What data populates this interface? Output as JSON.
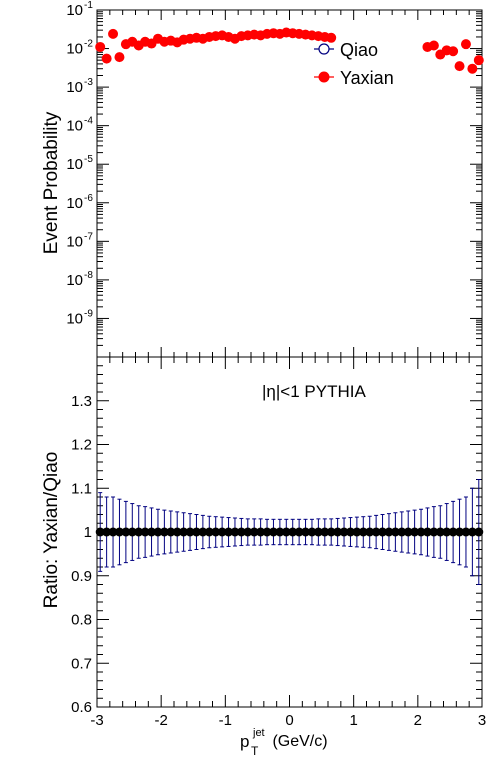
{
  "chart_data": [
    {
      "type": "scatter",
      "ylabel": "Event Probability",
      "ylog": true,
      "xlim": [
        -3,
        3
      ],
      "ylim_log10": [
        -10,
        -1
      ],
      "ytick_exponents": [
        "-9",
        "-8",
        "-7",
        "-6",
        "-5",
        "-4",
        "-3",
        "-2",
        "-1"
      ],
      "ytick_base": "10",
      "legend_position": "top-right",
      "legend": [
        {
          "label": "Qiao",
          "marker": "open-circle",
          "color": "#000080"
        },
        {
          "label": "Yaxian",
          "marker": "filled-circle",
          "color": "#ff0000"
        }
      ],
      "series": [
        {
          "name": "Yaxian",
          "color": "#ff0000",
          "x": [
            -2.95,
            -2.85,
            -2.75,
            -2.65,
            -2.55,
            -2.45,
            -2.35,
            -2.25,
            -2.15,
            -2.05,
            -1.95,
            -1.85,
            -1.75,
            -1.65,
            -1.55,
            -1.45,
            -1.35,
            -1.25,
            -1.15,
            -1.05,
            -0.95,
            -0.85,
            -0.75,
            -0.65,
            -0.55,
            -0.45,
            -0.35,
            -0.25,
            -0.15,
            -0.05,
            0.05,
            0.15,
            0.25,
            0.35,
            0.45,
            0.55,
            0.65,
            2.15,
            2.25,
            2.35,
            2.45,
            2.55,
            2.65,
            2.75,
            2.85,
            2.95
          ],
          "y": [
            0.011,
            0.0055,
            0.024,
            0.006,
            0.013,
            0.015,
            0.012,
            0.015,
            0.0135,
            0.018,
            0.015,
            0.016,
            0.0145,
            0.017,
            0.018,
            0.019,
            0.018,
            0.02,
            0.021,
            0.022,
            0.02,
            0.018,
            0.021,
            0.022,
            0.023,
            0.022,
            0.024,
            0.025,
            0.024,
            0.026,
            0.025,
            0.024,
            0.023,
            0.022,
            0.021,
            0.02,
            0.019,
            0.011,
            0.012,
            0.007,
            0.009,
            0.0085,
            0.0035,
            0.013,
            0.003,
            0.005
          ]
        }
      ]
    },
    {
      "type": "scatter",
      "annotation": "|η|<1  PYTHIA",
      "xlabel_main": "p",
      "xlabel_sub": "T",
      "xlabel_sup": "jet",
      "xlabel_unit": " (GeV/c)",
      "ylabel": "Ratio: Yaxian/Qiao",
      "xlim": [
        -3,
        3
      ],
      "ylim": [
        0.6,
        1.4
      ],
      "xticks": [
        "-3",
        "-2",
        "-1",
        "0",
        "1",
        "2",
        "3"
      ],
      "yticks": [
        "0.6",
        "0.7",
        "0.8",
        "0.9",
        "1",
        "1.1",
        "1.2",
        "1.3"
      ],
      "series": [
        {
          "name": "Yaxian/Qiao",
          "color": "#000080",
          "x_start": -2.95,
          "x_step": 0.1,
          "count": 60,
          "value": 1.0,
          "errors": [
            0.09,
            0.08,
            0.08,
            0.075,
            0.07,
            0.065,
            0.06,
            0.058,
            0.055,
            0.052,
            0.05,
            0.048,
            0.046,
            0.044,
            0.042,
            0.04,
            0.038,
            0.036,
            0.035,
            0.034,
            0.033,
            0.032,
            0.031,
            0.03,
            0.03,
            0.03,
            0.029,
            0.029,
            0.029,
            0.029,
            0.029,
            0.029,
            0.029,
            0.029,
            0.03,
            0.03,
            0.03,
            0.031,
            0.032,
            0.033,
            0.034,
            0.035,
            0.036,
            0.038,
            0.04,
            0.042,
            0.044,
            0.046,
            0.048,
            0.05,
            0.052,
            0.055,
            0.058,
            0.06,
            0.065,
            0.07,
            0.075,
            0.08,
            0.1,
            0.12
          ]
        }
      ]
    }
  ]
}
